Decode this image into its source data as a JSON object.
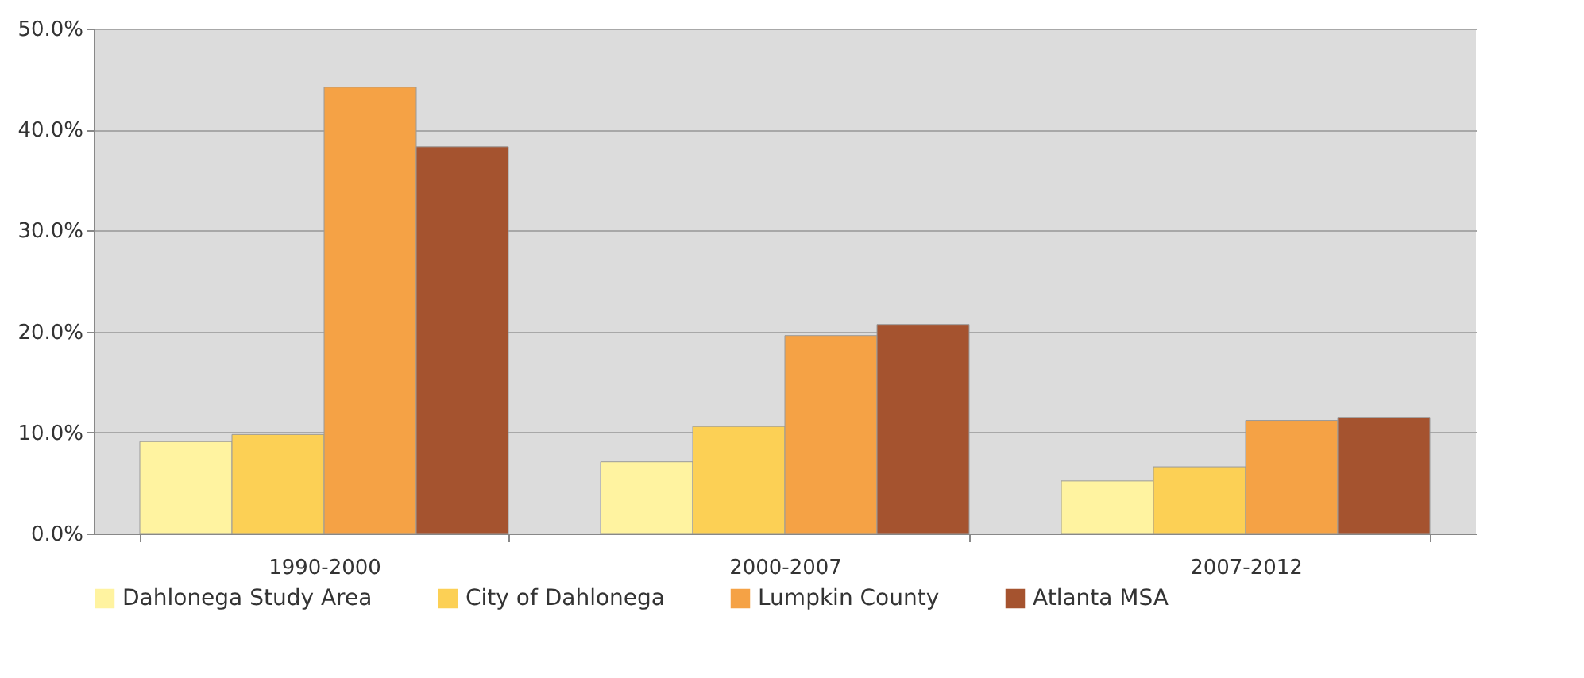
{
  "chart_data": {
    "type": "bar",
    "categories": [
      "1990-2000",
      "2000-2007",
      "2007-2012"
    ],
    "series": [
      {
        "name": "Dahlonega Study Area",
        "color": "#fff3a0",
        "values": [
          9.1,
          7.1,
          5.2
        ]
      },
      {
        "name": "City of Dahlonega",
        "color": "#fcd055",
        "values": [
          9.8,
          10.6,
          6.6
        ]
      },
      {
        "name": "Lumpkin County",
        "color": "#f5a245",
        "values": [
          44.2,
          19.6,
          11.2
        ]
      },
      {
        "name": "Atlanta MSA",
        "color": "#a5532f",
        "values": [
          38.3,
          20.7,
          11.5
        ]
      }
    ],
    "ylim": [
      0,
      50
    ],
    "yticks": [
      {
        "value": 0,
        "label": "0.0%"
      },
      {
        "value": 10,
        "label": "10.0%"
      },
      {
        "value": 20,
        "label": "20.0%"
      },
      {
        "value": 30,
        "label": "30.0%"
      },
      {
        "value": 40,
        "label": "40.0%"
      },
      {
        "value": 50,
        "label": "50.0%"
      }
    ],
    "grid": "y",
    "legend": "bottom"
  }
}
